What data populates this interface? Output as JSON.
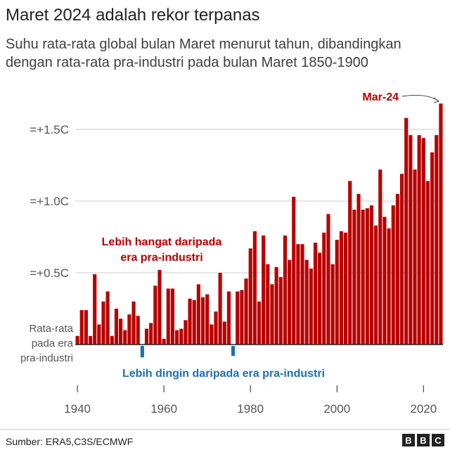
{
  "chart_data": {
    "type": "bar",
    "title": "Maret 2024 adalah rekor terpanas",
    "subtitle": "Suhu rata-rata global bulan Maret menurut tahun, dibandingkan dengan rata-rata pra-industri pada bulan Maret 1850-1900",
    "x_start": 1940,
    "values": [
      0.06,
      0.24,
      0.24,
      0.06,
      0.49,
      0.14,
      0.3,
      0.37,
      0.06,
      0.25,
      0.18,
      0.1,
      0.21,
      0.3,
      0.2,
      -0.06,
      0.11,
      0.15,
      0.41,
      0.52,
      0.04,
      0.39,
      0.39,
      0.1,
      0.11,
      0.17,
      0.32,
      0.31,
      0.42,
      0.33,
      0.35,
      0.14,
      0.23,
      0.5,
      0.16,
      0.37,
      -0.05,
      0.37,
      0.38,
      0.46,
      0.67,
      0.79,
      0.3,
      0.76,
      0.56,
      0.42,
      0.54,
      0.47,
      0.76,
      0.59,
      1.03,
      0.7,
      0.7,
      0.59,
      0.53,
      0.71,
      0.64,
      0.78,
      0.91,
      0.56,
      0.73,
      0.79,
      0.78,
      1.14,
      0.94,
      1.05,
      0.94,
      0.95,
      0.97,
      0.83,
      1.22,
      0.89,
      0.81,
      0.97,
      1.05,
      1.19,
      1.58,
      1.46,
      1.22,
      1.46,
      1.44,
      1.14,
      1.34,
      1.46,
      1.68
    ],
    "ylim": [
      -0.1,
      1.7
    ],
    "yticks": [
      {
        "v": 0.5,
        "label": "=+0.5C"
      },
      {
        "v": 1.0,
        "label": "=+1.0C"
      },
      {
        "v": 1.5,
        "label": "=+1.5C"
      }
    ],
    "baseline_label": [
      "Rata-rata",
      "pada era",
      "pra-industri"
    ],
    "xticks": [
      1940,
      1960,
      1980,
      2000,
      2020
    ],
    "annotations": {
      "warm": [
        "Lebih hangat daripada",
        "era pra-industri"
      ],
      "cold": "Lebih dingin daripada era pra-industri",
      "highlight": "Mar-24"
    },
    "grid": true,
    "colors": {
      "warm": "#b80000",
      "cold": "#1f6fb2"
    }
  },
  "footer": {
    "source": "Sumber: ERA5,C3S/ECMWF",
    "logo": [
      "B",
      "B",
      "C"
    ]
  }
}
